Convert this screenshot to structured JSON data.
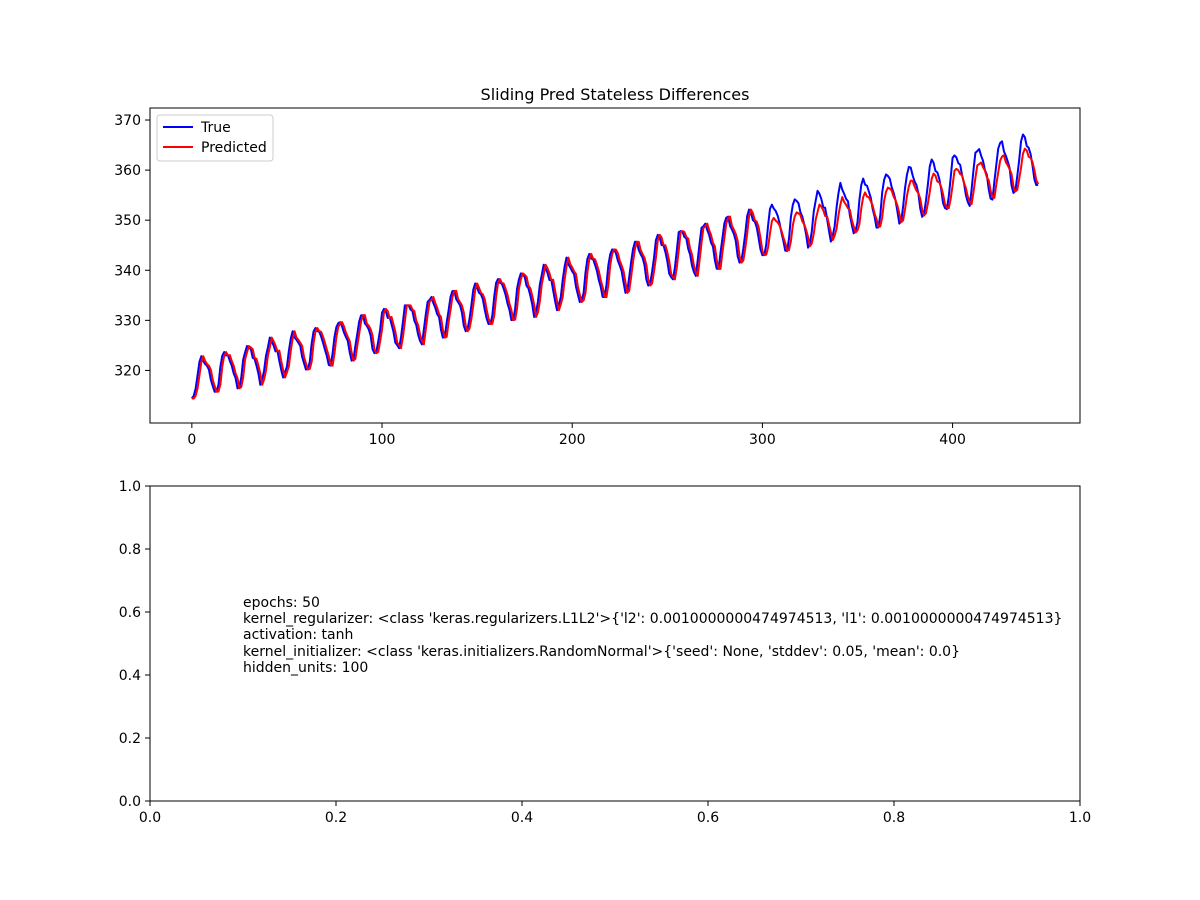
{
  "chart_data": [
    {
      "type": "line",
      "title": "Sliding Pred Stateless Differences",
      "xlabel": "",
      "ylabel": "",
      "xlim": [
        -22,
        467
      ],
      "ylim": [
        309.5,
        372.4
      ],
      "xticks": [
        0,
        100,
        200,
        300,
        400
      ],
      "yticks": [
        320,
        330,
        340,
        350,
        360,
        370
      ],
      "grid": false,
      "legend_position": "top-left",
      "series_model": {
        "n_points": 446,
        "trend_start": 318.5,
        "trend_end": 361.5,
        "seasonal_period": 12,
        "seasonal_amplitude_start": 3.6,
        "seasonal_amplitude_end": 5.2,
        "prediction_lag": 1,
        "prediction_damping": 0.72,
        "prediction_damping_start": 300
      },
      "series": [
        {
          "name": "True",
          "color": "#0000ff"
        },
        {
          "name": "Predicted",
          "color": "#ff0000"
        }
      ]
    },
    {
      "type": "text",
      "xlim": [
        0.0,
        1.0
      ],
      "ylim": [
        0.0,
        1.0
      ],
      "xticks": [
        "0.0",
        "0.2",
        "0.4",
        "0.6",
        "0.8",
        "1.0"
      ],
      "yticks": [
        "0.0",
        "0.2",
        "0.4",
        "0.6",
        "0.8",
        "1.0"
      ],
      "grid": false,
      "annotation": {
        "lines": [
          "epochs: 50",
          "kernel_regularizer: <class 'keras.regularizers.L1L2'>{'l2': 0.0010000000474974513, 'l1': 0.0010000000474974513}",
          "activation: tanh",
          "kernel_initializer: <class 'keras.initializers.RandomNormal'>{'seed': None, 'stddev': 0.05, 'mean': 0.0}",
          "hidden_units: 100"
        ]
      }
    }
  ]
}
